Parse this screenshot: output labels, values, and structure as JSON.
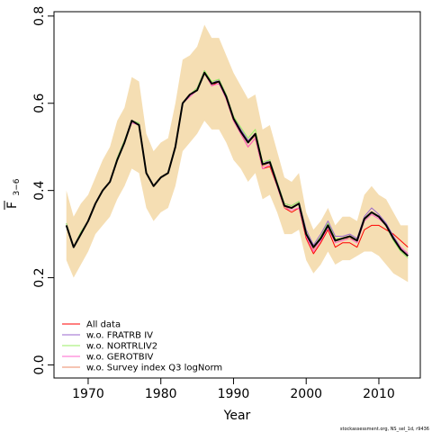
{
  "chart_data": {
    "type": "line",
    "xlabel": "Year",
    "ylabel_main": "F",
    "ylabel_sub": "3−6",
    "xlim": [
      1965.3,
      2015.7
    ],
    "ylim": [
      -0.03,
      0.81
    ],
    "xticks": [
      1970,
      1980,
      1990,
      2000,
      2010
    ],
    "xtick_labels": [
      "1970",
      "1980",
      "1990",
      "2000",
      "2010"
    ],
    "yticks": [
      0.0,
      0.2,
      0.4,
      0.6,
      0.8
    ],
    "ytick_labels": [
      "0.0",
      "0.2",
      "0.4",
      "0.6",
      "0.8"
    ],
    "grid": false,
    "legend_position": "bottom-left",
    "x": [
      1967,
      1968,
      1969,
      1970,
      1971,
      1972,
      1973,
      1974,
      1975,
      1976,
      1977,
      1978,
      1979,
      1980,
      1981,
      1982,
      1983,
      1984,
      1985,
      1986,
      1987,
      1988,
      1989,
      1990,
      1991,
      1992,
      1993,
      1994,
      1995,
      1996,
      1997,
      1998,
      1999,
      2000,
      2001,
      2002,
      2003,
      2004,
      2005,
      2006,
      2007,
      2008,
      2009,
      2010,
      2011,
      2012,
      2013,
      2014
    ],
    "band": {
      "color": "#f5deb3",
      "lower": [
        0.24,
        0.2,
        0.23,
        0.26,
        0.3,
        0.32,
        0.34,
        0.38,
        0.41,
        0.45,
        0.44,
        0.36,
        0.33,
        0.35,
        0.36,
        0.41,
        0.49,
        0.51,
        0.53,
        0.56,
        0.54,
        0.54,
        0.51,
        0.47,
        0.45,
        0.42,
        0.44,
        0.38,
        0.39,
        0.35,
        0.3,
        0.3,
        0.31,
        0.24,
        0.21,
        0.23,
        0.26,
        0.23,
        0.24,
        0.24,
        0.25,
        0.26,
        0.26,
        0.25,
        0.23,
        0.21,
        0.2,
        0.19
      ],
      "upper": [
        0.4,
        0.34,
        0.37,
        0.39,
        0.43,
        0.47,
        0.5,
        0.56,
        0.59,
        0.66,
        0.65,
        0.53,
        0.49,
        0.51,
        0.52,
        0.6,
        0.7,
        0.71,
        0.73,
        0.78,
        0.75,
        0.75,
        0.71,
        0.67,
        0.64,
        0.61,
        0.62,
        0.54,
        0.55,
        0.49,
        0.43,
        0.42,
        0.44,
        0.35,
        0.31,
        0.33,
        0.36,
        0.32,
        0.34,
        0.34,
        0.33,
        0.39,
        0.41,
        0.39,
        0.38,
        0.35,
        0.32,
        0.32
      ]
    },
    "series": [
      {
        "name": "All data",
        "color": "#ff0000",
        "width": 1,
        "values": [
          0.32,
          0.27,
          0.3,
          0.33,
          0.37,
          0.4,
          0.42,
          0.47,
          0.51,
          0.56,
          0.55,
          0.44,
          0.41,
          0.43,
          0.44,
          0.5,
          0.6,
          0.62,
          0.63,
          0.67,
          0.64,
          0.65,
          0.61,
          0.56,
          0.53,
          0.5,
          0.52,
          0.45,
          0.455,
          0.41,
          0.36,
          0.35,
          0.36,
          0.29,
          0.255,
          0.28,
          0.31,
          0.27,
          0.28,
          0.28,
          0.27,
          0.31,
          0.32,
          0.32,
          0.31,
          0.3,
          0.285,
          0.27
        ]
      },
      {
        "name": "w.o. FRATRB IV",
        "color": "#9966cc",
        "width": 1,
        "values": [
          0.325,
          0.27,
          0.305,
          0.33,
          0.37,
          0.4,
          0.42,
          0.475,
          0.515,
          0.56,
          0.555,
          0.44,
          0.41,
          0.43,
          0.44,
          0.5,
          0.6,
          0.62,
          0.635,
          0.675,
          0.645,
          0.655,
          0.62,
          0.57,
          0.54,
          0.515,
          0.53,
          0.46,
          0.47,
          0.42,
          0.37,
          0.365,
          0.375,
          0.31,
          0.275,
          0.3,
          0.33,
          0.295,
          0.295,
          0.3,
          0.29,
          0.34,
          0.36,
          0.345,
          0.325,
          0.295,
          0.27,
          0.255
        ]
      },
      {
        "name": "w.o. NORTRLIV2",
        "color": "#99ee66",
        "width": 1,
        "values": [
          0.325,
          0.27,
          0.305,
          0.33,
          0.37,
          0.4,
          0.42,
          0.475,
          0.515,
          0.56,
          0.555,
          0.44,
          0.41,
          0.43,
          0.44,
          0.5,
          0.6,
          0.62,
          0.635,
          0.675,
          0.65,
          0.655,
          0.62,
          0.57,
          0.545,
          0.52,
          0.54,
          0.465,
          0.47,
          0.42,
          0.37,
          0.365,
          0.375,
          0.305,
          0.27,
          0.295,
          0.325,
          0.29,
          0.29,
          0.295,
          0.285,
          0.33,
          0.35,
          0.34,
          0.32,
          0.285,
          0.26,
          0.245
        ]
      },
      {
        "name": "w.o. GEROTBIV",
        "color": "#ff66cc",
        "width": 1,
        "values": [
          0.32,
          0.27,
          0.3,
          0.33,
          0.37,
          0.4,
          0.42,
          0.47,
          0.51,
          0.555,
          0.55,
          0.44,
          0.41,
          0.43,
          0.44,
          0.5,
          0.6,
          0.615,
          0.63,
          0.67,
          0.64,
          0.645,
          0.61,
          0.56,
          0.53,
          0.5,
          0.52,
          0.45,
          0.46,
          0.41,
          0.36,
          0.355,
          0.36,
          0.295,
          0.26,
          0.285,
          0.315,
          0.28,
          0.285,
          0.29,
          0.28,
          0.33,
          0.345,
          0.335,
          0.32,
          0.29,
          0.27,
          0.255
        ]
      },
      {
        "name": "w.o. Survey index Q3 logNorm",
        "color": "#ee8866",
        "width": 1,
        "values": [
          0.32,
          0.27,
          0.3,
          0.33,
          0.37,
          0.4,
          0.42,
          0.47,
          0.51,
          0.56,
          0.55,
          0.44,
          0.41,
          0.43,
          0.44,
          0.5,
          0.6,
          0.62,
          0.63,
          0.67,
          0.645,
          0.65,
          0.615,
          0.565,
          0.535,
          0.51,
          0.525,
          0.455,
          0.465,
          0.415,
          0.36,
          0.36,
          0.37,
          0.3,
          0.265,
          0.29,
          0.32,
          0.285,
          0.29,
          0.29,
          0.285,
          0.335,
          0.35,
          0.34,
          0.32,
          0.29,
          0.265,
          0.25
        ]
      },
      {
        "name": "",
        "color": "#000000",
        "width": 2,
        "values": [
          0.32,
          0.27,
          0.3,
          0.33,
          0.37,
          0.4,
          0.42,
          0.47,
          0.51,
          0.56,
          0.55,
          0.44,
          0.41,
          0.43,
          0.44,
          0.5,
          0.6,
          0.62,
          0.63,
          0.67,
          0.645,
          0.65,
          0.615,
          0.565,
          0.535,
          0.51,
          0.53,
          0.46,
          0.465,
          0.415,
          0.365,
          0.36,
          0.37,
          0.3,
          0.27,
          0.29,
          0.32,
          0.285,
          0.29,
          0.295,
          0.285,
          0.335,
          0.35,
          0.34,
          0.32,
          0.29,
          0.265,
          0.25
        ]
      }
    ],
    "legend": [
      "All data",
      "w.o. FRATRB IV",
      "w.o. NORTRLIV2",
      "w.o. GEROTBIV",
      "w.o. Survey index Q3 logNorm"
    ],
    "legend_colors": [
      "#ff0000",
      "#9966cc",
      "#99ee66",
      "#ff66cc",
      "#ee8866"
    ]
  },
  "footer": "stockassessment.org, NS_sel_1d, r9436"
}
